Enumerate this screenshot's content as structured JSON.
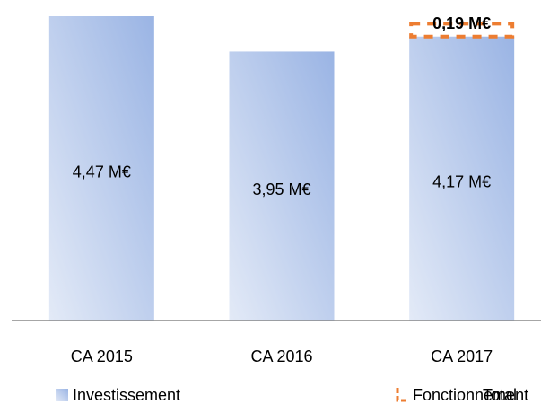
{
  "chart_data": {
    "type": "stacked_bar",
    "categories": [
      "CA 2015",
      "CA 2016",
      "CA 2017"
    ],
    "series": [
      {
        "name": "Investissement",
        "color": "#a3bce8",
        "values": [
          4.47,
          3.95,
          4.17
        ],
        "value_labels": [
          "4,47 M€",
          "3,95 M€",
          "4,17 M€"
        ]
      },
      {
        "name": "Fonctionnement",
        "color": "#ed7d31",
        "values": [
          null,
          null,
          0.19
        ],
        "value_labels": [
          null,
          null,
          "0,19 M€"
        ]
      },
      {
        "name": "Total",
        "color": null,
        "values": [
          null,
          null,
          null
        ]
      }
    ],
    "legend": "bottom"
  }
}
